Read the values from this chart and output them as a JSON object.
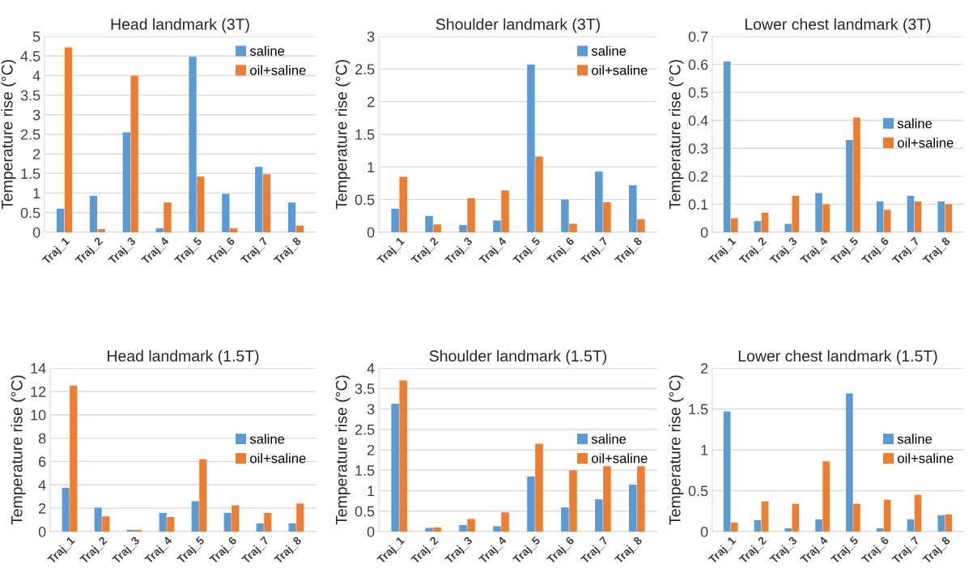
{
  "chart_data": [
    {
      "type": "bar",
      "title": "Head landmark (3T)",
      "ylabel": "Temperature rise (°C)",
      "categories": [
        "Traj_1",
        "Traj_2",
        "Traj_3",
        "Traj_4",
        "Traj_5",
        "Traj_6",
        "Traj_7",
        "Traj_8"
      ],
      "series": [
        {
          "name": "saline",
          "color": "#5b9bd5",
          "values": [
            0.6,
            0.93,
            2.55,
            0.1,
            4.48,
            0.98,
            1.67,
            0.76
          ]
        },
        {
          "name": "oil+saline",
          "color": "#ed7d31",
          "values": [
            4.72,
            0.08,
            4.0,
            0.76,
            1.42,
            0.1,
            1.48,
            0.17
          ]
        }
      ],
      "ylim": [
        0,
        5
      ],
      "yticks": [
        0,
        0.5,
        1,
        1.5,
        2,
        2.5,
        3,
        3.5,
        4,
        4.5,
        5
      ],
      "grid": "y",
      "legend": "top right"
    },
    {
      "type": "bar",
      "title": "Shoulder landmark (3T)",
      "ylabel": "Temperature rise (°C)",
      "categories": [
        "Traj_1",
        "Traj_2",
        "Traj_3",
        "Traj_4",
        "Traj_5",
        "Traj_6",
        "Traj_7",
        "Traj_8"
      ],
      "series": [
        {
          "name": "saline",
          "color": "#5b9bd5",
          "values": [
            0.36,
            0.25,
            0.11,
            0.18,
            2.57,
            0.5,
            0.93,
            0.72
          ]
        },
        {
          "name": "oil+saline",
          "color": "#ed7d31",
          "values": [
            0.85,
            0.12,
            0.52,
            0.64,
            1.16,
            0.13,
            0.46,
            0.2
          ]
        }
      ],
      "ylim": [
        0,
        3
      ],
      "yticks": [
        0,
        0.5,
        1,
        1.5,
        2,
        2.5,
        3
      ],
      "grid": "y",
      "legend": "top right"
    },
    {
      "type": "bar",
      "title": "Lower chest landmark (3T)",
      "ylabel": "Temperature rise (°C)",
      "categories": [
        "Traj_1",
        "Traj_2",
        "Traj_3",
        "Traj_4",
        "Traj_5",
        "Traj_6",
        "Traj_7",
        "Traj_8"
      ],
      "series": [
        {
          "name": "saline",
          "color": "#5b9bd5",
          "values": [
            0.61,
            0.04,
            0.03,
            0.14,
            0.33,
            0.11,
            0.13,
            0.11
          ]
        },
        {
          "name": "oil+saline",
          "color": "#ed7d31",
          "values": [
            0.05,
            0.07,
            0.13,
            0.1,
            0.41,
            0.08,
            0.11,
            0.1
          ]
        }
      ],
      "ylim": [
        0,
        0.7
      ],
      "yticks": [
        0,
        0.1,
        0.2,
        0.3,
        0.4,
        0.5,
        0.6,
        0.7
      ],
      "grid": "y",
      "legend": "right"
    },
    {
      "type": "bar",
      "title": "Head landmark (1.5T)",
      "ylabel": "Temperature rise (°C)",
      "categories": [
        "Traj_1",
        "Traj_2",
        "Traj_3",
        "Traj_4",
        "Traj_5",
        "Traj_6",
        "Traj_7",
        "Traj_8"
      ],
      "series": [
        {
          "name": "saline",
          "color": "#5b9bd5",
          "values": [
            3.75,
            2.05,
            0.15,
            1.6,
            2.6,
            1.6,
            0.7,
            0.7
          ]
        },
        {
          "name": "oil+saline",
          "color": "#ed7d31",
          "values": [
            12.5,
            1.3,
            0.15,
            1.25,
            6.2,
            2.25,
            1.6,
            2.4
          ]
        }
      ],
      "ylim": [
        0,
        14
      ],
      "yticks": [
        0,
        2,
        4,
        6,
        8,
        10,
        12,
        14
      ],
      "grid": "y",
      "legend": "right"
    },
    {
      "type": "bar",
      "title": "Shoulder landmark (1.5T)",
      "ylabel": "Temperature rise (°C)",
      "categories": [
        "Traj_1",
        "Traj_2",
        "Traj_3",
        "Traj_4",
        "Traj_5",
        "Traj_6",
        "Traj_7",
        "Traj_8"
      ],
      "series": [
        {
          "name": "saline",
          "color": "#5b9bd5",
          "values": [
            3.13,
            0.09,
            0.16,
            0.13,
            1.35,
            0.59,
            0.79,
            1.15
          ]
        },
        {
          "name": "oil+saline",
          "color": "#ed7d31",
          "values": [
            3.7,
            0.1,
            0.31,
            0.47,
            2.15,
            1.5,
            1.6,
            1.6
          ]
        }
      ],
      "ylim": [
        0,
        4
      ],
      "yticks": [
        0,
        0.5,
        1,
        1.5,
        2,
        2.5,
        3,
        3.5,
        4
      ],
      "grid": "y",
      "legend": "right"
    },
    {
      "type": "bar",
      "title": "Lower chest landmark (1.5T)",
      "ylabel": "Temperature rise (°C)",
      "categories": [
        "Traj_1",
        "Traj_2",
        "Traj_3",
        "Traj_4",
        "Traj_5",
        "Traj_6",
        "Traj_7",
        "Traj_8"
      ],
      "series": [
        {
          "name": "saline",
          "color": "#5b9bd5",
          "values": [
            1.47,
            0.14,
            0.04,
            0.15,
            1.69,
            0.04,
            0.15,
            0.2
          ]
        },
        {
          "name": "oil+saline",
          "color": "#ed7d31",
          "values": [
            0.11,
            0.37,
            0.34,
            0.86,
            0.34,
            0.39,
            0.45,
            0.21
          ]
        }
      ],
      "ylim": [
        0,
        2
      ],
      "yticks": [
        0,
        0.5,
        1,
        1.5,
        2
      ],
      "grid": "y",
      "legend": "right"
    }
  ]
}
